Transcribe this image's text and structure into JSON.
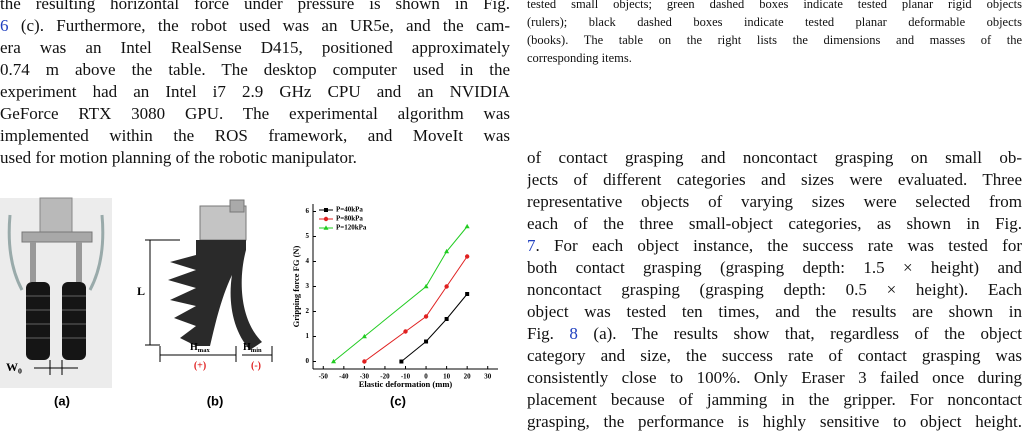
{
  "left_column": {
    "lines": [
      [
        "the resulting horizontal force under pressure is shown in Fig."
      ],
      [
        {
          "link": "6"
        },
        " (c). Furthermore, the robot used was an UR5e, and the cam-"
      ],
      [
        "era was an Intel RealSense D415, positioned approximately"
      ],
      [
        "0.74 m above the table. The desktop computer used in the"
      ],
      [
        "experiment had an Intel i7 2.9 GHz CPU and an NVIDIA"
      ],
      [
        "GeForce RTX 3080 GPU. The experimental algorithm was"
      ],
      [
        "implemented within the ROS framework, and MoveIt was"
      ],
      [
        "used for motion planning of the robotic manipulator."
      ]
    ]
  },
  "caption": {
    "lines": [
      [
        "tested small objects; green dashed boxes indicate tested planar rigid objects"
      ],
      [
        "(rulers); black dashed boxes indicate tested planar deformable objects"
      ],
      [
        "(books). The table on the right lists the dimensions and masses of the"
      ],
      [
        "corresponding items."
      ]
    ]
  },
  "right_column": {
    "lines": [
      [
        "of contact grasping and noncontact grasping on small ob-"
      ],
      [
        "jects of different categories and sizes were evaluated. Three"
      ],
      [
        "representative objects of varying sizes were selected from"
      ],
      [
        "each of the three small-object categories, as shown in Fig."
      ],
      [
        {
          "link": "7"
        },
        ". For each object instance, the success rate was tested for"
      ],
      [
        "both contact grasping (grasping depth: 1.5 × height) and"
      ],
      [
        "noncontact grasping (grasping depth: 0.5 × height). Each"
      ],
      [
        "object was tested ten times, and the results are shown in"
      ],
      [
        "Fig. ",
        {
          "link": "8"
        },
        " (a). The results show that, regardless of the object"
      ],
      [
        "category and size, the success rate of contact grasping was"
      ],
      [
        "consistently close to 100%. Only Eraser 3 failed once during"
      ],
      [
        "placement because of jamming in the gripper. For noncontact"
      ],
      [
        "grasping, the performance is highly sensitive to object height."
      ]
    ]
  },
  "figure": {
    "panels": [
      {
        "label": "(a)",
        "annotations": [
          {
            "text": "W",
            "sub": "0"
          }
        ]
      },
      {
        "label": "(b)",
        "annotations": [
          "L",
          {
            "text": "H",
            "sub": "max"
          },
          {
            "text": "H",
            "sub": "min"
          },
          "(+)",
          "(-)"
        ]
      },
      {
        "label": "(c)"
      }
    ],
    "chart": {
      "type": "line",
      "x_label": "Elastic deformation (mm)",
      "y_label": "Gripping force FG (N)",
      "xlim": [
        -55,
        35
      ],
      "ylim": [
        -0.3,
        6.3
      ],
      "xticks": [
        -50,
        -40,
        -30,
        -20,
        -10,
        0,
        10,
        20,
        30
      ],
      "yticks": [
        0,
        1,
        2,
        3,
        4,
        5,
        6
      ],
      "legend": "upper-left",
      "series": [
        {
          "name": "P=40kPa",
          "color": "#000000",
          "marker": "square",
          "x": [
            -12,
            0,
            10,
            20
          ],
          "values": [
            0,
            0.8,
            1.7,
            2.7
          ]
        },
        {
          "name": "P=80kPa",
          "color": "#e02020",
          "marker": "circle",
          "x": [
            -30,
            -10,
            0,
            10,
            20
          ],
          "values": [
            0,
            1.2,
            1.8,
            3.0,
            4.2
          ]
        },
        {
          "name": "P=120kPa",
          "color": "#22cc22",
          "marker": "triangle",
          "x": [
            -45,
            -30,
            0,
            10,
            20
          ],
          "values": [
            0,
            1.0,
            3.0,
            4.4,
            5.4
          ]
        }
      ]
    }
  }
}
